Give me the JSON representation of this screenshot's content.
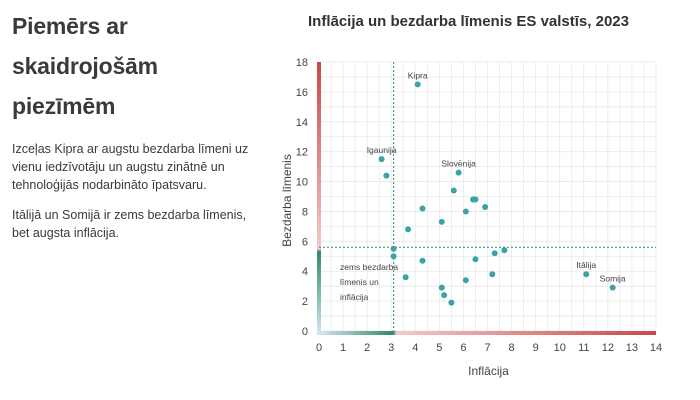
{
  "panel": {
    "heading": "Piemērs ar skaidrojošām piezīmēm",
    "paragraphs": [
      "Izceļas Kipra ar augstu bezdarba līmeni uz vienu iedzīvotāju un augstu zinātnē un tehnoloģijās nodarbināto īpatsvaru.",
      "Itālijā un Somijā ir zems bezdarba līmenis, bet augsta inflācija."
    ]
  },
  "chart_data": {
    "type": "scatter",
    "title": "Inflācija un bezdarba līmenis ES valstīs, 2023",
    "xlabel": "Inflācija",
    "ylabel": "Bezdarba līmenis",
    "xlim": [
      0,
      14
    ],
    "ylim": [
      0,
      18
    ],
    "xticks": [
      0,
      1,
      2,
      3,
      4,
      5,
      6,
      7,
      8,
      9,
      10,
      11,
      12,
      13,
      14
    ],
    "yticks": [
      0,
      2,
      4,
      6,
      8,
      10,
      12,
      14,
      16,
      18
    ],
    "grid": true,
    "reference_lines": {
      "x": 3.1,
      "y": 5.6
    },
    "annotation": [
      "zems bezdarba",
      "līmenis un",
      "inflācija"
    ],
    "colors": {
      "point": "#3aa3a8",
      "guide": "#2e8b6f",
      "high": "#c9474a",
      "low": "#d7e6ef"
    },
    "points": [
      {
        "x": 4.1,
        "y": 16.5,
        "label": "Kipra"
      },
      {
        "x": 2.6,
        "y": 11.5,
        "label": "Igaunija"
      },
      {
        "x": 2.8,
        "y": 10.4,
        "label": ""
      },
      {
        "x": 5.8,
        "y": 10.6,
        "label": "Slovēnija"
      },
      {
        "x": 5.6,
        "y": 9.4,
        "label": ""
      },
      {
        "x": 6.4,
        "y": 8.8,
        "label": ""
      },
      {
        "x": 6.5,
        "y": 8.8,
        "label": ""
      },
      {
        "x": 6.9,
        "y": 8.3,
        "label": ""
      },
      {
        "x": 6.1,
        "y": 8.0,
        "label": ""
      },
      {
        "x": 4.3,
        "y": 8.2,
        "label": ""
      },
      {
        "x": 5.1,
        "y": 7.3,
        "label": ""
      },
      {
        "x": 3.7,
        "y": 6.8,
        "label": ""
      },
      {
        "x": 3.1,
        "y": 5.5,
        "label": ""
      },
      {
        "x": 3.1,
        "y": 5.0,
        "label": ""
      },
      {
        "x": 4.3,
        "y": 4.7,
        "label": ""
      },
      {
        "x": 6.5,
        "y": 4.8,
        "label": ""
      },
      {
        "x": 7.3,
        "y": 5.2,
        "label": ""
      },
      {
        "x": 7.7,
        "y": 5.4,
        "label": ""
      },
      {
        "x": 3.6,
        "y": 3.6,
        "label": ""
      },
      {
        "x": 6.1,
        "y": 3.4,
        "label": ""
      },
      {
        "x": 7.2,
        "y": 3.8,
        "label": ""
      },
      {
        "x": 5.1,
        "y": 2.9,
        "label": ""
      },
      {
        "x": 5.2,
        "y": 2.4,
        "label": ""
      },
      {
        "x": 5.5,
        "y": 1.9,
        "label": ""
      },
      {
        "x": 11.1,
        "y": 3.8,
        "label": "Itālija"
      },
      {
        "x": 12.2,
        "y": 2.9,
        "label": "Somija"
      }
    ]
  }
}
